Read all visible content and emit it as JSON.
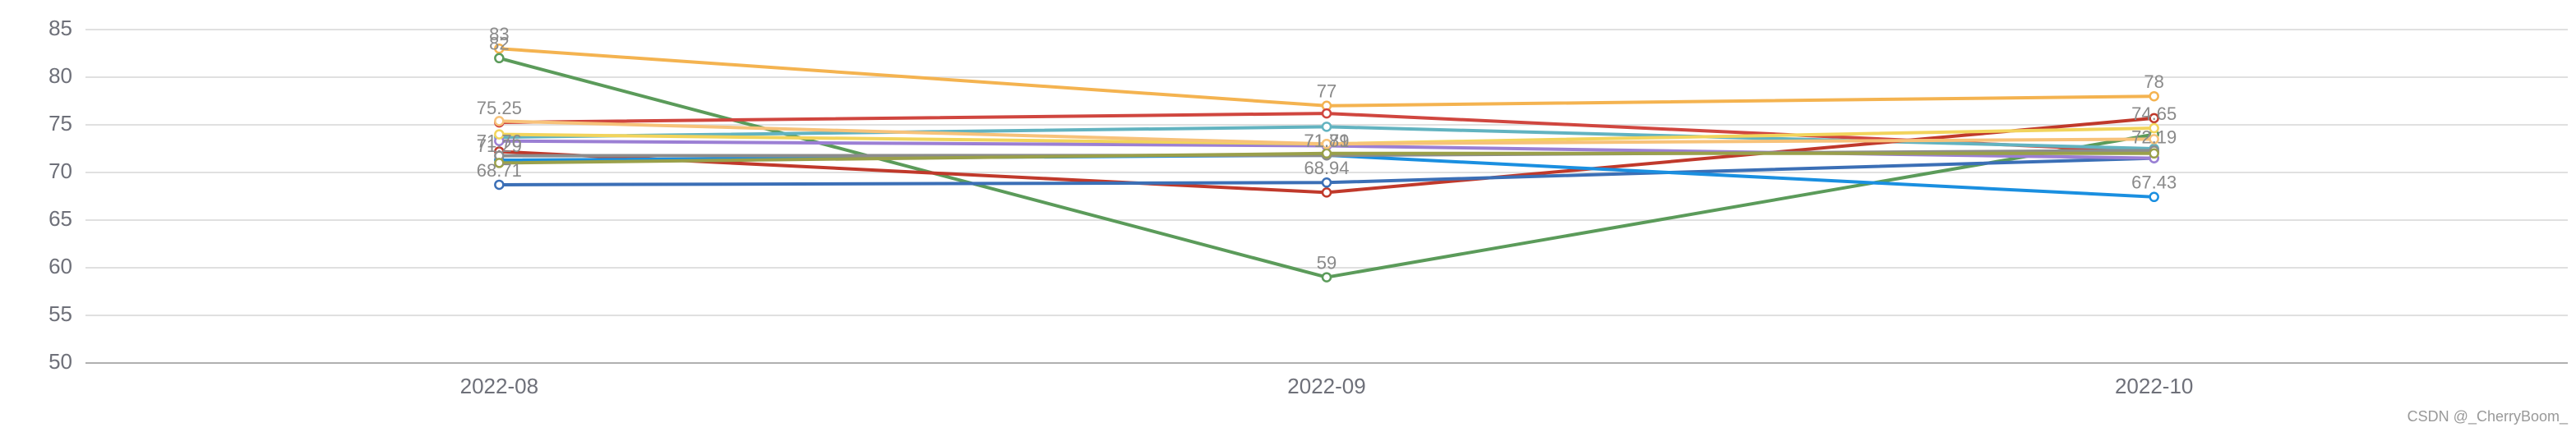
{
  "chart_data": {
    "type": "line",
    "categories": [
      "2022-08",
      "2022-09",
      "2022-10"
    ],
    "ylim": [
      50,
      85
    ],
    "yticks": [
      50,
      55,
      60,
      65,
      70,
      75,
      80,
      85
    ],
    "grid": true,
    "series": [
      {
        "color": "#f4b350",
        "values": [
          83,
          77,
          78
        ],
        "value_labels": [
          "83",
          "77",
          "78"
        ]
      },
      {
        "color": "#5b9b5a",
        "values": [
          82,
          59,
          74
        ],
        "value_labels": [
          "82",
          "59",
          null
        ]
      },
      {
        "color": "#d0463f",
        "values": [
          75.25,
          76.2,
          72.19
        ],
        "value_labels": [
          "75.25",
          null,
          "72.19"
        ]
      },
      {
        "color": "#62b3c0",
        "values": [
          73.7,
          74.8,
          72.5
        ],
        "value_labels": [
          null,
          null,
          null
        ]
      },
      {
        "color": "#c0392b",
        "values": [
          72.2,
          67.9,
          75.7
        ],
        "value_labels": [
          null,
          null,
          null
        ]
      },
      {
        "color": "#3b6fb6",
        "values": [
          68.71,
          68.94,
          71.5
        ],
        "value_labels": [
          "68.71",
          "68.94",
          null
        ]
      },
      {
        "color": "#1a8fe0",
        "values": [
          71.29,
          71.81,
          67.43
        ],
        "value_labels": [
          "71.29",
          "71.81",
          "67.43"
        ]
      },
      {
        "color": "#9b7fd4",
        "values": [
          73.3,
          72.8,
          71.5
        ],
        "value_labels": [
          null,
          null,
          null
        ]
      },
      {
        "color": "#8c8c8c",
        "values": [
          71.76,
          71.79,
          72.3
        ],
        "value_labels": [
          "71.76",
          "71.79",
          null
        ]
      },
      {
        "color": "#f2d45c",
        "values": [
          74,
          73,
          74.65
        ],
        "value_labels": [
          null,
          null,
          "74.65"
        ]
      },
      {
        "color": "#9aa04a",
        "values": [
          71,
          72,
          72
        ],
        "value_labels": [
          null,
          null,
          null
        ]
      },
      {
        "color": "#f7c27a",
        "values": [
          75.4,
          73,
          73.5
        ],
        "value_labels": [
          null,
          null,
          null
        ]
      }
    ],
    "watermark": "CSDN @_CherryBoom_"
  }
}
